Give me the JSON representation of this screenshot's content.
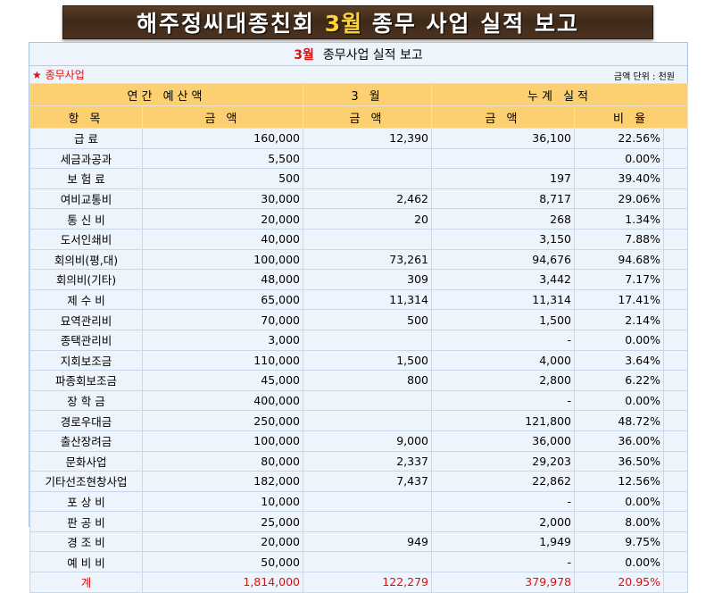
{
  "banner": {
    "prefix": "해주정씨대종친회 ",
    "accent": "3월",
    "suffix": " 종무 사업 실적 보고"
  },
  "title": {
    "month": "3월",
    "text": "종무사업 실적 보고"
  },
  "section_label": "★ 종무사업",
  "unit_label": "금액 단위 : 천원",
  "header_top": {
    "annual_budget": "연간 예산액",
    "month": "3 월",
    "cumulative": "누계 실적"
  },
  "header_sub": {
    "item": "항  목",
    "amount1": "금  액",
    "amount2": "금  액",
    "amount3": "금  액",
    "ratio": "비 율"
  },
  "rows": [
    {
      "item": "급     료",
      "budget": "160,000",
      "month": "12,390",
      "cumulative": "36,100",
      "ratio": "22.56%"
    },
    {
      "item": "세금과공과",
      "budget": "5,500",
      "month": "",
      "cumulative": "",
      "ratio": "0.00%"
    },
    {
      "item": "보 험 료",
      "budget": "500",
      "month": "",
      "cumulative": "197",
      "ratio": "39.40%"
    },
    {
      "item": "여비교통비",
      "budget": "30,000",
      "month": "2,462",
      "cumulative": "8,717",
      "ratio": "29.06%"
    },
    {
      "item": "통 신 비",
      "budget": "20,000",
      "month": "20",
      "cumulative": "268",
      "ratio": "1.34%"
    },
    {
      "item": "도서인쇄비",
      "budget": "40,000",
      "month": "",
      "cumulative": "3,150",
      "ratio": "7.88%"
    },
    {
      "item": "회의비(평,대)",
      "budget": "100,000",
      "month": "73,261",
      "cumulative": "94,676",
      "ratio": "94.68%"
    },
    {
      "item": "회의비(기타)",
      "budget": "48,000",
      "month": "309",
      "cumulative": "3,442",
      "ratio": "7.17%"
    },
    {
      "item": "제 수 비",
      "budget": "65,000",
      "month": "11,314",
      "cumulative": "11,314",
      "ratio": "17.41%"
    },
    {
      "item": "묘역관리비",
      "budget": "70,000",
      "month": "500",
      "cumulative": "1,500",
      "ratio": "2.14%"
    },
    {
      "item": "종택관리비",
      "budget": "3,000",
      "month": "",
      "cumulative": "-",
      "ratio": "0.00%"
    },
    {
      "item": "지회보조금",
      "budget": "110,000",
      "month": "1,500",
      "cumulative": "4,000",
      "ratio": "3.64%"
    },
    {
      "item": "파종회보조금",
      "budget": "45,000",
      "month": "800",
      "cumulative": "2,800",
      "ratio": "6.22%"
    },
    {
      "item": "장 학 금",
      "budget": "400,000",
      "month": "",
      "cumulative": "-",
      "ratio": "0.00%"
    },
    {
      "item": "경로우대금",
      "budget": "250,000",
      "month": "",
      "cumulative": "121,800",
      "ratio": "48.72%"
    },
    {
      "item": "출산장려금",
      "budget": "100,000",
      "month": "9,000",
      "cumulative": "36,000",
      "ratio": "36.00%"
    },
    {
      "item": "문화사업",
      "budget": "80,000",
      "month": "2,337",
      "cumulative": "29,203",
      "ratio": "36.50%"
    },
    {
      "item": "기타선조현창사업",
      "budget": "182,000",
      "month": "7,437",
      "cumulative": "22,862",
      "ratio": "12.56%"
    },
    {
      "item": "포 상 비",
      "budget": "10,000",
      "month": "",
      "cumulative": "-",
      "ratio": "0.00%"
    },
    {
      "item": "판 공 비",
      "budget": "25,000",
      "month": "",
      "cumulative": "2,000",
      "ratio": "8.00%"
    },
    {
      "item": "경 조 비",
      "budget": "20,000",
      "month": "949",
      "cumulative": "1,949",
      "ratio": "9.75%"
    },
    {
      "item": "예 비 비",
      "budget": "50,000",
      "month": "",
      "cumulative": "-",
      "ratio": "0.00%"
    }
  ],
  "total": {
    "item": "계",
    "budget": "1,814,000",
    "month": "122,279",
    "cumulative": "379,978",
    "ratio": "20.95%"
  }
}
